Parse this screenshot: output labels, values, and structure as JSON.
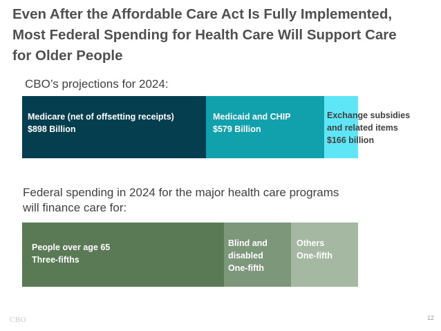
{
  "title": "Even After the Affordable Care Act Is Fully Implemented,\nMost Federal Spending for Health Care Will Support Care\nfor Older People",
  "logo_text": "CBO",
  "page_number": "12",
  "chart_data": [
    {
      "type": "bar",
      "orientation": "horizontal-stacked",
      "title": "CBO’s projections for 2024:",
      "categories": [
        "Medicare (net of offsetting receipts)",
        "Medicaid and CHIP",
        "Exchange subsidies and related items"
      ],
      "values": [
        898,
        579,
        166
      ],
      "unit": "Billion dollars",
      "segments": [
        {
          "name": "Medicare (net of offsetting receipts)",
          "value": 898,
          "lines": [
            "Medicare (net of offsetting receipts)",
            "$898 Billion"
          ],
          "color": "#053f4f",
          "text_color": "#ffffff"
        },
        {
          "name": "Medicaid and CHIP",
          "value": 579,
          "lines": [
            "Medicaid and CHIP",
            "$579 Billion"
          ],
          "color": "#10a1ac",
          "text_color": "#ffffff"
        },
        {
          "name": "Exchange subsidies and related items",
          "value": 166,
          "lines": [
            "Exchange subsidies",
            "and related items",
            "$166 billion"
          ],
          "color": "#5ee6f7",
          "text_color": "#404040"
        }
      ]
    },
    {
      "type": "bar",
      "orientation": "horizontal-stacked",
      "title": "Federal spending in 2024 for the major health care programs will finance care for:",
      "categories": [
        "People over age 65",
        "Blind and disabled",
        "Others"
      ],
      "values": [
        0.6,
        0.2,
        0.2
      ],
      "unit": "share of spending",
      "segments": [
        {
          "name": "People over age 65",
          "value": 0.6,
          "lines": [
            "People over age 65",
            "Three-fifths"
          ],
          "color": "#5a7a56",
          "text_color": "#ffffff"
        },
        {
          "name": "Blind and disabled",
          "value": 0.2,
          "lines": [
            "Blind and",
            "disabled",
            "One-fifth"
          ],
          "color": "#7c977a",
          "text_color": "#ffffff"
        },
        {
          "name": "Others",
          "value": 0.2,
          "lines": [
            "Others",
            "One-fifth"
          ],
          "color": "#a4b8a2",
          "text_color": "#ffffff"
        }
      ]
    }
  ]
}
